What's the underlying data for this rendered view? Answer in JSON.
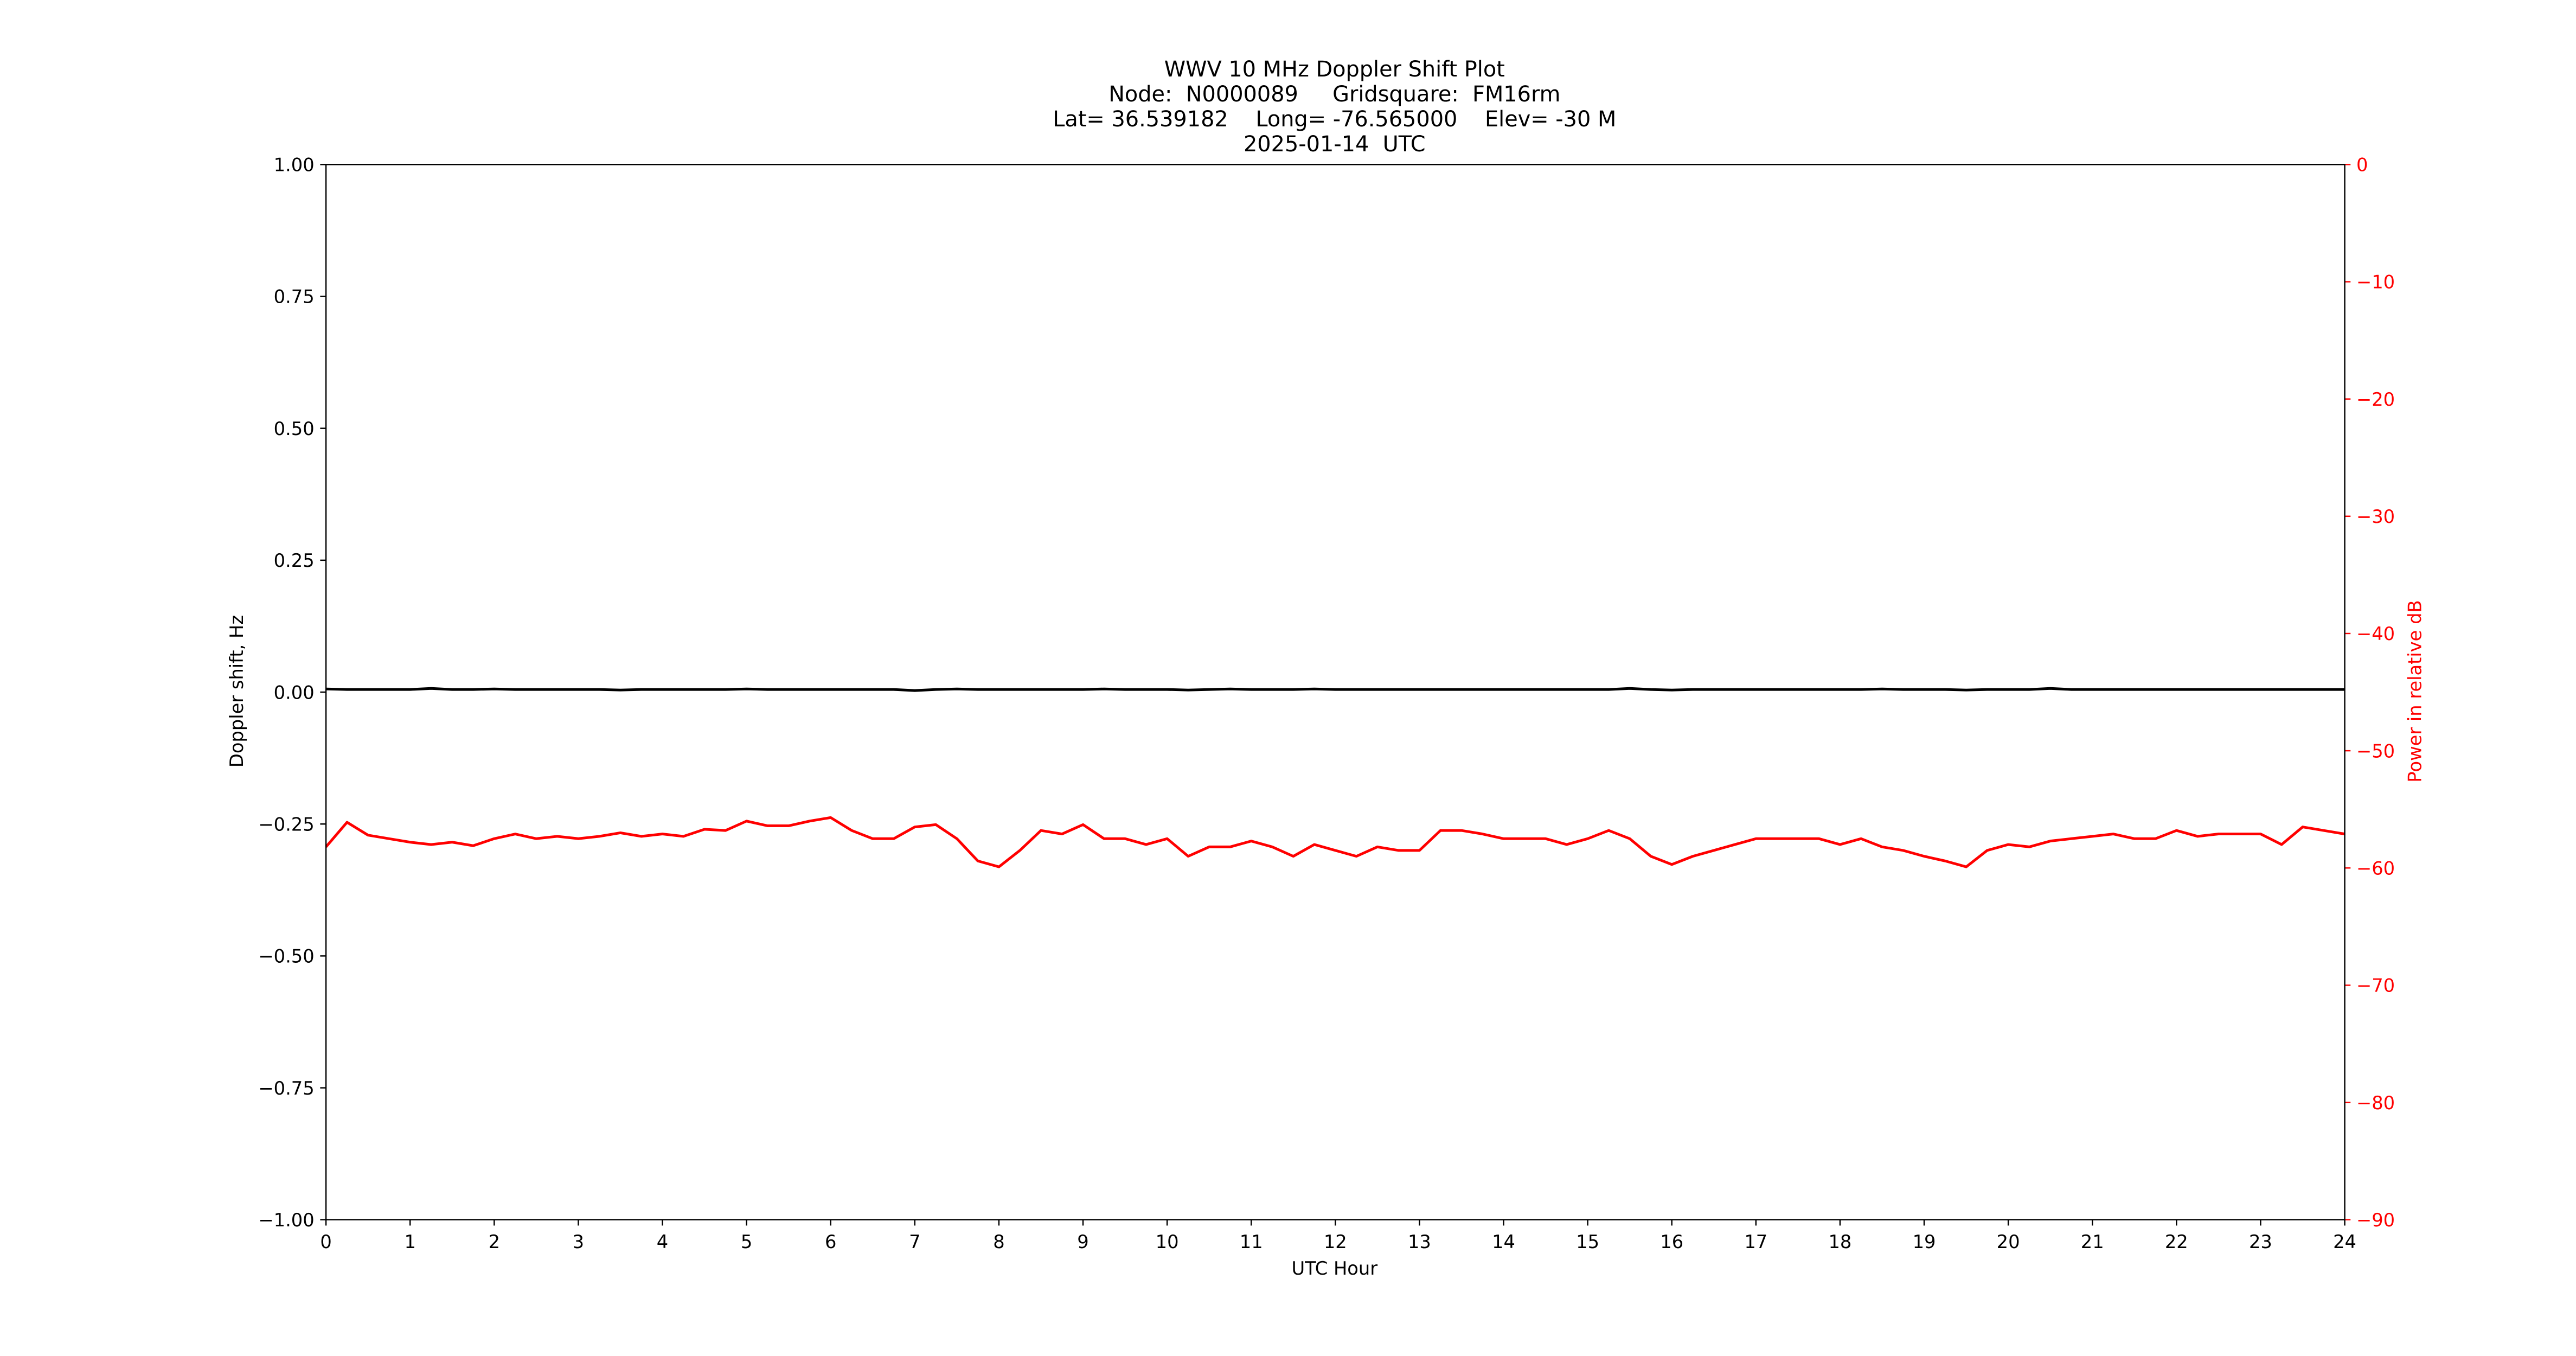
{
  "chart_data": {
    "type": "line",
    "title_lines": [
      "WWV 10 MHz Doppler Shift Plot",
      "Node:  N0000089     Gridsquare:  FM16rm",
      "Lat= 36.539182    Long= -76.565000    Elev= -30 M",
      "2025-01-14  UTC"
    ],
    "x_label": "UTC Hour",
    "y_label": "Doppler shift, Hz",
    "y2_label": "Power in relative dB",
    "xlim": [
      0,
      24
    ],
    "xticks": [
      0,
      1,
      2,
      3,
      4,
      5,
      6,
      7,
      8,
      9,
      10,
      11,
      12,
      13,
      14,
      15,
      16,
      17,
      18,
      19,
      20,
      21,
      22,
      23,
      24
    ],
    "ylim": [
      -1,
      1
    ],
    "yticks": [
      {
        "value": -1,
        "label": "−1.00"
      },
      {
        "value": -0.75,
        "label": "−0.75"
      },
      {
        "value": -0.5,
        "label": "−0.50"
      },
      {
        "value": -0.25,
        "label": "−0.25"
      },
      {
        "value": 0,
        "label": "0.00"
      },
      {
        "value": 0.25,
        "label": "0.25"
      },
      {
        "value": 0.5,
        "label": "0.50"
      },
      {
        "value": 0.75,
        "label": "0.75"
      },
      {
        "value": 1,
        "label": "1.00"
      }
    ],
    "y2lim": [
      -90,
      0
    ],
    "y2ticks": [
      {
        "value": -90,
        "label": "−90"
      },
      {
        "value": -80,
        "label": "−80"
      },
      {
        "value": -70,
        "label": "−70"
      },
      {
        "value": -60,
        "label": "−60"
      },
      {
        "value": -50,
        "label": "−50"
      },
      {
        "value": -40,
        "label": "−40"
      },
      {
        "value": -30,
        "label": "−30"
      },
      {
        "value": -20,
        "label": "−20"
      },
      {
        "value": -10,
        "label": "−10"
      },
      0
    ],
    "y2color": "#ff0000",
    "x": [
      0,
      0.25,
      0.5,
      0.75,
      1,
      1.25,
      1.5,
      1.75,
      2,
      2.25,
      2.5,
      2.75,
      3,
      3.25,
      3.5,
      3.75,
      4,
      4.25,
      4.5,
      4.75,
      5,
      5.25,
      5.5,
      5.75,
      6,
      6.25,
      6.5,
      6.75,
      7,
      7.25,
      7.5,
      7.75,
      8,
      8.25,
      8.5,
      8.75,
      9,
      9.25,
      9.5,
      9.75,
      10,
      10.25,
      10.5,
      10.75,
      11,
      11.25,
      11.5,
      11.75,
      12,
      12.25,
      12.5,
      12.75,
      13,
      13.25,
      13.5,
      13.75,
      14,
      14.25,
      14.5,
      14.75,
      15,
      15.25,
      15.5,
      15.75,
      16,
      16.25,
      16.5,
      16.75,
      17,
      17.25,
      17.5,
      17.75,
      18,
      18.25,
      18.5,
      18.75,
      19,
      19.25,
      19.5,
      19.75,
      20,
      20.25,
      20.5,
      20.75,
      21,
      21.25,
      21.5,
      21.75,
      22,
      22.25,
      22.5,
      22.75,
      23,
      23.25,
      23.5,
      23.75,
      24
    ],
    "series": [
      {
        "color": "#000000",
        "values": [
          0.006,
          0.005,
          0.005,
          0.005,
          0.005,
          0.007,
          0.005,
          0.005,
          0.006,
          0.005,
          0.005,
          0.005,
          0.005,
          0.005,
          0.004,
          0.005,
          0.005,
          0.005,
          0.005,
          0.005,
          0.006,
          0.005,
          0.005,
          0.005,
          0.005,
          0.005,
          0.005,
          0.005,
          0.003,
          0.005,
          0.006,
          0.005,
          0.005,
          0.005,
          0.005,
          0.005,
          0.005,
          0.006,
          0.005,
          0.005,
          0.005,
          0.004,
          0.005,
          0.006,
          0.005,
          0.005,
          0.005,
          0.006,
          0.005,
          0.005,
          0.005,
          0.005,
          0.005,
          0.005,
          0.005,
          0.005,
          0.005,
          0.005,
          0.005,
          0.005,
          0.005,
          0.005,
          0.007,
          0.005,
          0.004,
          0.005,
          0.005,
          0.005,
          0.005,
          0.005,
          0.005,
          0.005,
          0.005,
          0.005,
          0.006,
          0.005,
          0.005,
          0.005,
          0.004,
          0.005,
          0.005,
          0.005,
          0.007,
          0.005,
          0.005,
          0.005,
          0.005,
          0.005,
          0.005,
          0.005,
          0.005,
          0.005,
          0.005,
          0.005,
          0.005,
          0.005,
          0.005
        ]
      },
      {
        "color": "#ff0000",
        "axis": "y2",
        "values": [
          -58.2,
          -56.1,
          -57.2,
          -57.5,
          -57.8,
          -58.0,
          -57.8,
          -58.1,
          -57.5,
          -57.1,
          -57.5,
          -57.3,
          -57.5,
          -57.3,
          -57.0,
          -57.3,
          -57.1,
          -57.3,
          -56.7,
          -56.8,
          -56.0,
          -56.4,
          -56.4,
          -56.0,
          -55.7,
          -56.8,
          -57.5,
          -57.5,
          -56.5,
          -56.3,
          -57.5,
          -59.4,
          -59.9,
          -58.5,
          -56.8,
          -57.1,
          -56.3,
          -57.5,
          -57.5,
          -58.0,
          -57.5,
          -59.0,
          -58.2,
          -58.2,
          -57.7,
          -58.2,
          -59.0,
          -58.0,
          -58.5,
          -59.0,
          -58.2,
          -58.5,
          -58.5,
          -56.8,
          -56.8,
          -57.1,
          -57.5,
          -57.5,
          -57.5,
          -58.0,
          -57.5,
          -56.8,
          -57.5,
          -59.0,
          -59.7,
          -59.0,
          -58.5,
          -58.0,
          -57.5,
          -57.5,
          -57.5,
          -57.5,
          -58.0,
          -57.5,
          -58.2,
          -58.5,
          -59.0,
          -59.4,
          -59.9,
          -58.5,
          -58.0,
          -58.2,
          -57.7,
          -57.5,
          -57.3,
          -57.1,
          -57.5,
          -57.5,
          -56.8,
          -57.3,
          -57.1,
          -57.1,
          -57.1,
          -58.0,
          -56.5,
          -56.8,
          -57.1
        ]
      }
    ]
  }
}
